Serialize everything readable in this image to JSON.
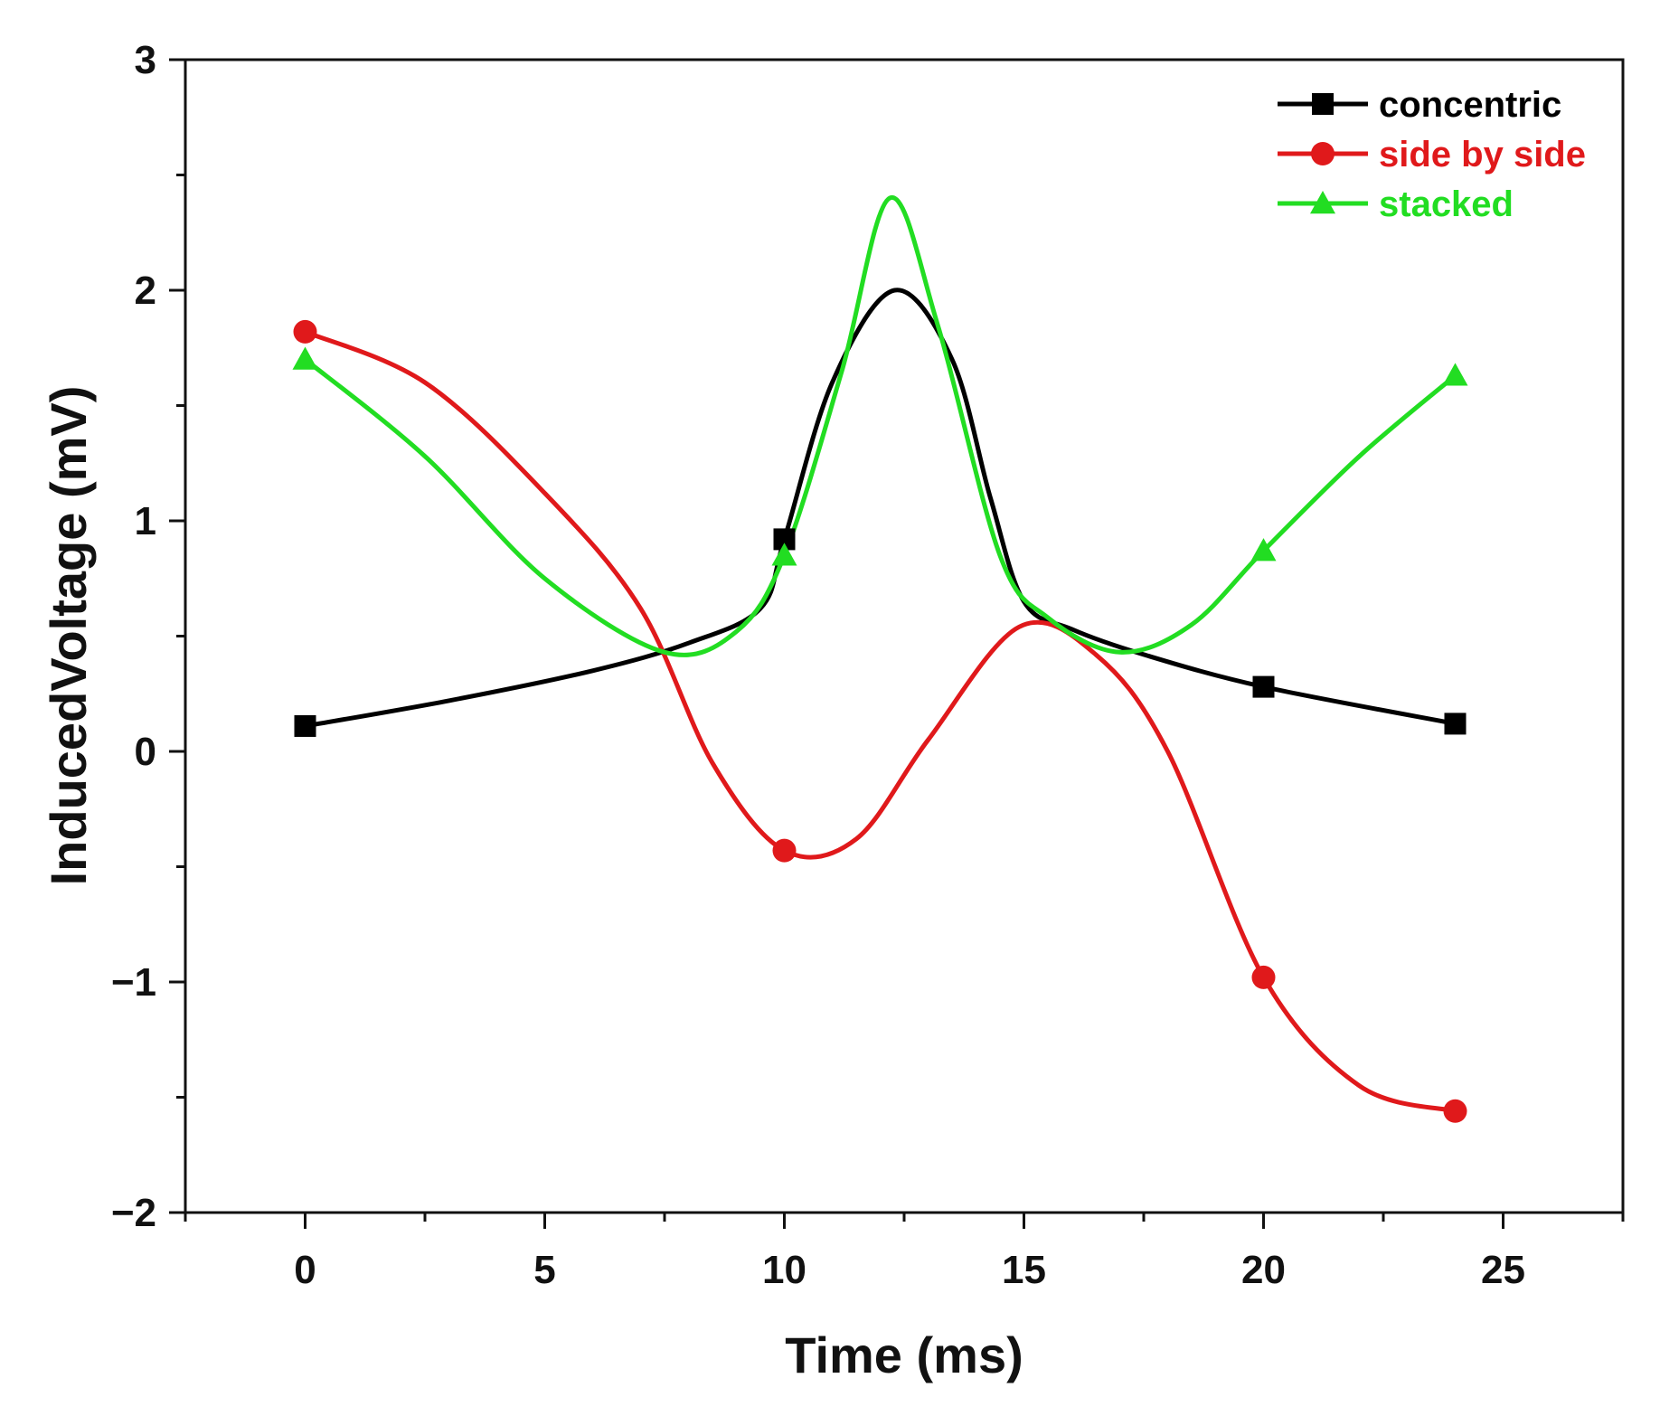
{
  "chart_data": {
    "type": "line",
    "title": "",
    "xlabel": "Time (ms)",
    "ylabel": "InducedVoltage (mV)",
    "xlim": [
      -2.5,
      27.5
    ],
    "ylim": [
      -2,
      3
    ],
    "xticks": [
      0,
      5,
      10,
      15,
      20,
      25
    ],
    "xtick_labels": [
      "0",
      "5",
      "10",
      "15",
      "20",
      "25"
    ],
    "yticks": [
      -2,
      -1,
      0,
      1,
      2,
      3
    ],
    "ytick_labels": [
      "−2",
      "−1",
      "0",
      "1",
      "2",
      "3"
    ],
    "legend_position": "top-right",
    "grid": false,
    "series": [
      {
        "name": "concentric",
        "color": "#000000",
        "marker": "square",
        "markers": [
          [
            0,
            0.11
          ],
          [
            10,
            0.92
          ],
          [
            20,
            0.28
          ],
          [
            24,
            0.12
          ]
        ],
        "curve": [
          [
            0,
            0.11
          ],
          [
            3,
            0.22
          ],
          [
            6,
            0.35
          ],
          [
            8,
            0.47
          ],
          [
            9.5,
            0.62
          ],
          [
            10,
            0.92
          ],
          [
            11,
            1.6
          ],
          [
            12.3,
            2.0
          ],
          [
            13.5,
            1.7
          ],
          [
            14.3,
            1.1
          ],
          [
            15,
            0.65
          ],
          [
            16,
            0.53
          ],
          [
            17.5,
            0.42
          ],
          [
            20,
            0.28
          ],
          [
            24,
            0.12
          ]
        ]
      },
      {
        "name": "side by side",
        "color": "#e0191b",
        "marker": "circle",
        "markers": [
          [
            0,
            1.82
          ],
          [
            10,
            -0.43
          ],
          [
            20,
            -0.98
          ],
          [
            24,
            -1.56
          ]
        ],
        "curve": [
          [
            0,
            1.82
          ],
          [
            2.5,
            1.6
          ],
          [
            5,
            1.12
          ],
          [
            7,
            0.62
          ],
          [
            8.5,
            -0.05
          ],
          [
            10,
            -0.43
          ],
          [
            11.5,
            -0.38
          ],
          [
            13,
            0.05
          ],
          [
            14.9,
            0.54
          ],
          [
            16.5,
            0.42
          ],
          [
            18,
            0.0
          ],
          [
            20,
            -0.98
          ],
          [
            22,
            -1.45
          ],
          [
            24,
            -1.56
          ]
        ]
      },
      {
        "name": "stacked",
        "color": "#22dd22",
        "marker": "triangle",
        "markers": [
          [
            0,
            1.7
          ],
          [
            10,
            0.85
          ],
          [
            20,
            0.87
          ],
          [
            24,
            1.63
          ]
        ],
        "curve": [
          [
            0,
            1.7
          ],
          [
            2.5,
            1.28
          ],
          [
            5,
            0.75
          ],
          [
            7.5,
            0.43
          ],
          [
            9,
            0.52
          ],
          [
            10,
            0.85
          ],
          [
            11.2,
            1.65
          ],
          [
            12.2,
            2.4
          ],
          [
            13.2,
            1.85
          ],
          [
            14.5,
            0.85
          ],
          [
            15.5,
            0.58
          ],
          [
            17,
            0.43
          ],
          [
            18.5,
            0.55
          ],
          [
            20,
            0.87
          ],
          [
            22,
            1.28
          ],
          [
            24,
            1.63
          ]
        ]
      }
    ]
  }
}
